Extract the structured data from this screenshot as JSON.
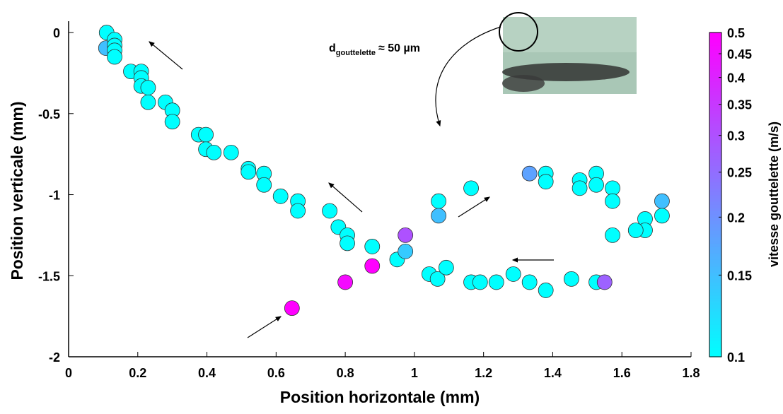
{
  "chart_data": {
    "type": "scatter",
    "xlabel": "Position horizontale  (mm)",
    "ylabel": "Position verticale  (mm)",
    "annotation": {
      "main": "d",
      "sub": "gouttelette",
      "rest": "≈ 50 µm"
    },
    "xlim": [
      0,
      1.8
    ],
    "xticks": [
      0,
      0.2,
      0.4,
      0.6,
      0.8,
      1,
      1.2,
      1.4,
      1.6,
      1.8
    ],
    "ylim": [
      -2,
      0.07
    ],
    "yticks": [
      -2,
      -1.5,
      -1,
      -0.5,
      0
    ],
    "x": [
      0.11,
      0.108,
      0.133,
      0.133,
      0.133,
      0.133,
      0.18,
      0.21,
      0.21,
      0.21,
      0.23,
      0.23,
      0.28,
      0.3,
      0.3,
      0.376,
      0.397,
      0.397,
      0.42,
      0.47,
      0.52,
      0.52,
      0.565,
      0.565,
      0.613,
      0.663,
      0.663,
      0.755,
      0.78,
      0.806,
      0.806,
      0.878,
      0.95,
      0.974,
      0.974,
      0.878,
      0.8,
      0.646,
      1.043,
      1.067,
      1.092,
      1.164,
      1.19,
      1.237,
      1.286,
      1.333,
      1.38,
      1.454,
      1.526,
      1.55,
      1.07,
      1.07,
      1.164,
      1.333,
      1.38,
      1.38,
      1.478,
      1.478,
      1.526,
      1.526,
      1.573,
      1.573,
      1.573,
      1.667,
      1.667,
      1.64,
      1.716,
      1.716
    ],
    "values": [
      0,
      -0.096,
      -0.044,
      -0.08,
      -0.11,
      -0.15,
      -0.24,
      -0.24,
      -0.28,
      -0.33,
      -0.34,
      -0.43,
      -0.43,
      -0.48,
      -0.55,
      -0.63,
      -0.63,
      -0.72,
      -0.74,
      -0.74,
      -0.84,
      -0.86,
      -0.87,
      -0.94,
      -1.01,
      -1.04,
      -1.1,
      -1.1,
      -1.2,
      -1.25,
      -1.3,
      -1.32,
      -1.4,
      -1.35,
      -1.25,
      -1.44,
      -1.54,
      -1.7,
      -1.49,
      -1.52,
      -1.45,
      -1.54,
      -1.54,
      -1.54,
      -1.49,
      -1.54,
      -1.59,
      -1.52,
      -1.54,
      -1.54,
      -1.04,
      -1.13,
      -0.96,
      -0.87,
      -0.87,
      -0.92,
      -0.91,
      -0.96,
      -0.87,
      -0.94,
      -0.96,
      -1.04,
      -1.25,
      -1.15,
      -1.22,
      -1.22,
      -1.04,
      -1.13
    ],
    "color_values": [
      0.1,
      0.15,
      0.1,
      0.1,
      0.1,
      0.1,
      0.1,
      0.1,
      0.1,
      0.1,
      0.1,
      0.1,
      0.1,
      0.1,
      0.1,
      0.1,
      0.1,
      0.1,
      0.1,
      0.1,
      0.1,
      0.1,
      0.1,
      0.1,
      0.1,
      0.1,
      0.1,
      0.1,
      0.1,
      0.1,
      0.1,
      0.1,
      0.1,
      0.14,
      0.3,
      0.5,
      0.47,
      0.5,
      0.1,
      0.1,
      0.1,
      0.1,
      0.1,
      0.1,
      0.1,
      0.1,
      0.1,
      0.1,
      0.1,
      0.27,
      0.1,
      0.15,
      0.1,
      0.18,
      0.1,
      0.1,
      0.1,
      0.1,
      0.1,
      0.1,
      0.1,
      0.1,
      0.1,
      0.1,
      0.1,
      0.1,
      0.15,
      0.1
    ],
    "colorbar": {
      "label": "vitesse gouttelette (m/s)",
      "log": true,
      "lim": [
        0.1,
        0.5
      ],
      "ticks": [
        0.1,
        0.15,
        0.2,
        0.25,
        0.3,
        0.35,
        0.4,
        0.45,
        0.5
      ],
      "colors": [
        "#00ffff",
        "#ff00ff"
      ]
    }
  }
}
